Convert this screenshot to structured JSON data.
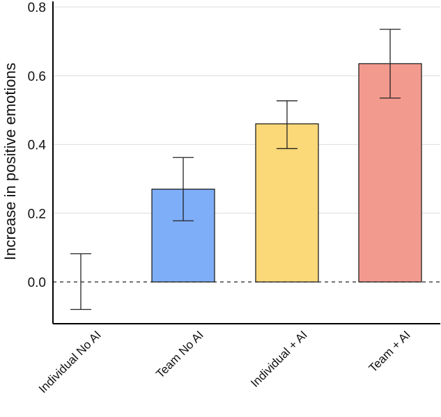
{
  "chart_data": {
    "type": "bar",
    "title": "",
    "xlabel": "",
    "ylabel": "Increase in positive emotions",
    "categories": [
      "Individual No AI",
      "Team No AI",
      "Individual + AI",
      "Team + AI"
    ],
    "values": [
      0.0,
      0.27,
      0.46,
      0.635
    ],
    "error_low": [
      -0.08,
      0.178,
      0.388,
      0.535
    ],
    "error_high": [
      0.082,
      0.362,
      0.527,
      0.735
    ],
    "colors": [
      "#ffffff",
      "#7eaef7",
      "#fbd878",
      "#f39a8e"
    ],
    "ylim": [
      -0.12,
      0.8
    ],
    "yticks": [
      "0.0",
      "0.2",
      "0.4",
      "0.6",
      "0.8"
    ],
    "ytick_values": [
      0.0,
      0.2,
      0.4,
      0.6,
      0.8
    ],
    "grid": true,
    "reference_line": 0.0
  }
}
